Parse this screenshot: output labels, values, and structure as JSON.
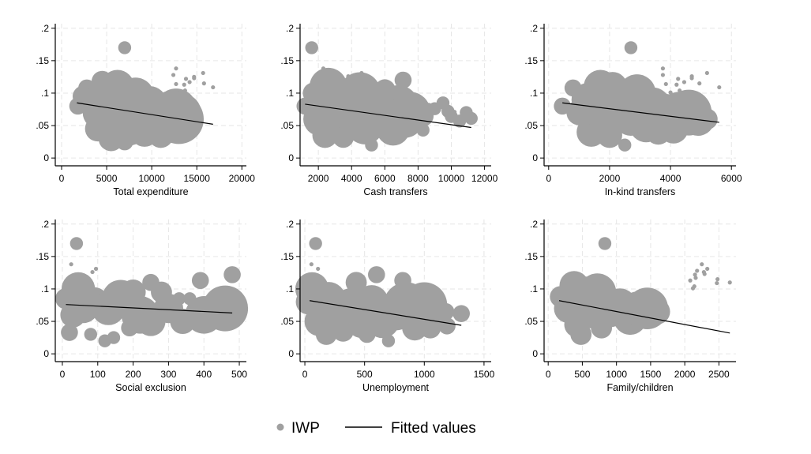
{
  "chart_data": {
    "type": "scatter",
    "figure_type": "multi-panel scatter with fitted lines",
    "legend": {
      "placement": "bottom-center",
      "entries": [
        {
          "label": "IWP",
          "marker": "circle",
          "color": "#a0a0a0"
        },
        {
          "label": "Fitted values",
          "marker": "line",
          "color": "#000000"
        }
      ]
    },
    "colors": {
      "points": "#a0a0a0",
      "fit": "#000000",
      "grid": "#e6e6e6",
      "axis": "#000000"
    },
    "y_axis": {
      "ticks": [
        0,
        0.05,
        0.1,
        0.15,
        0.2
      ],
      "tick_labels": [
        "0",
        ".05",
        ".1",
        ".15",
        ".2"
      ],
      "ylim": [
        -0.012,
        0.207
      ]
    },
    "panels": [
      {
        "xlabel": "Total expenditure",
        "xlim": [
          -700,
          20500
        ],
        "xticks": [
          0,
          5000,
          10000,
          15000,
          20000
        ],
        "xtick_labels": [
          "0",
          "5000",
          "10000",
          "15000",
          "20000"
        ],
        "fit": {
          "x": [
            1700,
            16800
          ],
          "y": [
            0.085,
            0.052
          ]
        },
        "points": [
          [
            1800,
            0.08,
            3
          ],
          [
            2400,
            0.095,
            4
          ],
          [
            2800,
            0.108,
            3
          ],
          [
            3500,
            0.085,
            6
          ],
          [
            4200,
            0.07,
            7
          ],
          [
            4500,
            0.118,
            4
          ],
          [
            4000,
            0.045,
            5
          ],
          [
            5200,
            0.06,
            8
          ],
          [
            5500,
            0.03,
            5
          ],
          [
            6200,
            0.11,
            7
          ],
          [
            6800,
            0.09,
            10
          ],
          [
            7200,
            0.065,
            9
          ],
          [
            7500,
            0.045,
            7
          ],
          [
            7000,
            0.025,
            3
          ],
          [
            7000,
            0.17,
            2
          ],
          [
            8200,
            0.095,
            8
          ],
          [
            8800,
            0.07,
            8
          ],
          [
            9200,
            0.04,
            6
          ],
          [
            9800,
            0.085,
            7
          ],
          [
            10500,
            0.06,
            9
          ],
          [
            11000,
            0.035,
            5
          ],
          [
            11800,
            0.08,
            6
          ],
          [
            12700,
            0.075,
            9
          ],
          [
            13000,
            0.06,
            11
          ],
          [
            13400,
            0.07,
            8
          ],
          [
            12400,
            0.128,
            1
          ],
          [
            12700,
            0.138,
            1
          ],
          [
            12700,
            0.114,
            1
          ],
          [
            13200,
            0.101,
            1
          ],
          [
            13600,
            0.113,
            1
          ],
          [
            13700,
            0.104,
            1
          ],
          [
            13800,
            0.122,
            1
          ],
          [
            14200,
            0.117,
            1
          ],
          [
            14700,
            0.125,
            1
          ],
          [
            14700,
            0.123,
            1
          ],
          [
            15700,
            0.131,
            1
          ],
          [
            15800,
            0.115,
            1
          ],
          [
            16800,
            0.109,
            1
          ]
        ]
      },
      {
        "xlabel": "Cash transfers",
        "xlim": [
          900,
          12400
        ],
        "xticks": [
          2000,
          4000,
          6000,
          8000,
          10000,
          12000
        ],
        "xtick_labels": [
          "2000",
          "4000",
          "6000",
          "8000",
          "10000",
          "12000"
        ],
        "fit": {
          "x": [
            1200,
            11200
          ],
          "y": [
            0.083,
            0.047
          ]
        },
        "points": [
          [
            1200,
            0.08,
            3
          ],
          [
            1600,
            0.17,
            2
          ],
          [
            1700,
            0.1,
            4
          ],
          [
            2100,
            0.06,
            7
          ],
          [
            2600,
            0.11,
            8
          ],
          [
            2400,
            0.035,
            5
          ],
          [
            3000,
            0.075,
            9
          ],
          [
            3400,
            0.05,
            7
          ],
          [
            3600,
            0.09,
            7
          ],
          [
            3500,
            0.032,
            4
          ],
          [
            4100,
            0.07,
            8
          ],
          [
            4500,
            0.1,
            9
          ],
          [
            4800,
            0.05,
            8
          ],
          [
            5200,
            0.02,
            2
          ],
          [
            5400,
            0.085,
            8
          ],
          [
            5800,
            0.065,
            8
          ],
          [
            6000,
            0.105,
            4
          ],
          [
            6500,
            0.045,
            7
          ],
          [
            6800,
            0.08,
            9
          ],
          [
            7100,
            0.12,
            3
          ],
          [
            7200,
            0.06,
            8
          ],
          [
            7500,
            0.07,
            9
          ],
          [
            8300,
            0.043,
            2
          ],
          [
            8300,
            0.065,
            4
          ],
          [
            8600,
            0.075,
            2
          ],
          [
            2300,
            0.138,
            1
          ],
          [
            3400,
            0.122,
            1
          ],
          [
            3800,
            0.126,
            1
          ],
          [
            4600,
            0.131,
            1
          ],
          [
            9000,
            0.076,
            2
          ],
          [
            9500,
            0.085,
            2
          ],
          [
            9800,
            0.072,
            2
          ],
          [
            10000,
            0.064,
            2
          ],
          [
            10200,
            0.071,
            1
          ],
          [
            10500,
            0.057,
            2
          ],
          [
            10900,
            0.07,
            2
          ],
          [
            11200,
            0.061,
            2
          ]
        ]
      },
      {
        "xlabel": "In-kind transfers",
        "xlim": [
          -150,
          6150
        ],
        "xticks": [
          0,
          2000,
          4000,
          6000
        ],
        "xtick_labels": [
          "0",
          "2000",
          "4000",
          "6000"
        ],
        "fit": {
          "x": [
            450,
            5600
          ],
          "y": [
            0.085,
            0.055
          ]
        },
        "points": [
          [
            450,
            0.08,
            3
          ],
          [
            800,
            0.108,
            3
          ],
          [
            1000,
            0.07,
            5
          ],
          [
            1300,
            0.09,
            7
          ],
          [
            1400,
            0.04,
            6
          ],
          [
            1700,
            0.11,
            7
          ],
          [
            1900,
            0.07,
            9
          ],
          [
            2100,
            0.11,
            6
          ],
          [
            2000,
            0.035,
            5
          ],
          [
            2400,
            0.08,
            8
          ],
          [
            2500,
            0.02,
            2
          ],
          [
            2700,
            0.17,
            2
          ],
          [
            2700,
            0.06,
            7
          ],
          [
            2900,
            0.1,
            8
          ],
          [
            3200,
            0.05,
            7
          ],
          [
            3400,
            0.08,
            8
          ],
          [
            3600,
            0.04,
            5
          ],
          [
            3800,
            0.07,
            8
          ],
          [
            4100,
            0.045,
            6
          ],
          [
            4300,
            0.07,
            9
          ],
          [
            4600,
            0.07,
            10
          ],
          [
            4900,
            0.06,
            7
          ],
          [
            5200,
            0.06,
            4
          ],
          [
            3750,
            0.138,
            1
          ],
          [
            3750,
            0.128,
            1
          ],
          [
            3850,
            0.114,
            1
          ],
          [
            4000,
            0.101,
            1
          ],
          [
            4200,
            0.113,
            1
          ],
          [
            4250,
            0.122,
            1
          ],
          [
            4300,
            0.104,
            1
          ],
          [
            4450,
            0.117,
            1
          ],
          [
            4700,
            0.123,
            1
          ],
          [
            4700,
            0.126,
            1
          ],
          [
            4950,
            0.115,
            1
          ],
          [
            5200,
            0.131,
            1
          ],
          [
            5600,
            0.109,
            1
          ]
        ]
      },
      {
        "xlabel": "Social exclusion",
        "xlim": [
          -20,
          520
        ],
        "xticks": [
          0,
          100,
          200,
          300,
          400,
          500
        ],
        "xtick_labels": [
          "0",
          "100",
          "200",
          "300",
          "400",
          "500"
        ],
        "fit": {
          "x": [
            10,
            480
          ],
          "y": [
            0.076,
            0.063
          ]
        },
        "points": [
          [
            10,
            0.085,
            4
          ],
          [
            20,
            0.033,
            3
          ],
          [
            30,
            0.06,
            5
          ],
          [
            45,
            0.1,
            7
          ],
          [
            40,
            0.17,
            2
          ],
          [
            60,
            0.07,
            6
          ],
          [
            80,
            0.03,
            2
          ],
          [
            90,
            0.08,
            6
          ],
          [
            120,
            0.02,
            2
          ],
          [
            130,
            0.07,
            7
          ],
          [
            145,
            0.025,
            2
          ],
          [
            165,
            0.085,
            8
          ],
          [
            190,
            0.04,
            3
          ],
          [
            200,
            0.095,
            5
          ],
          [
            220,
            0.06,
            8
          ],
          [
            250,
            0.05,
            6
          ],
          [
            250,
            0.11,
            3
          ],
          [
            280,
            0.095,
            4
          ],
          [
            300,
            0.07,
            6
          ],
          [
            330,
            0.085,
            2
          ],
          [
            340,
            0.05,
            5
          ],
          [
            360,
            0.085,
            2
          ],
          [
            390,
            0.113,
            3
          ],
          [
            400,
            0.06,
            8
          ],
          [
            460,
            0.07,
            10
          ],
          [
            480,
            0.122,
            3
          ],
          [
            25,
            0.138,
            1
          ],
          [
            85,
            0.126,
            1
          ],
          [
            95,
            0.131,
            1
          ]
        ]
      },
      {
        "xlabel": "Unemployment",
        "xlim": [
          -40,
          1560
        ],
        "xticks": [
          0,
          500,
          1000,
          1500
        ],
        "xtick_labels": [
          "0",
          "500",
          "1000",
          "1500"
        ],
        "fit": {
          "x": [
            40,
            1310
          ],
          "y": [
            0.082,
            0.044
          ]
        },
        "points": [
          [
            30,
            0.08,
            5
          ],
          [
            60,
            0.1,
            7
          ],
          [
            90,
            0.17,
            2
          ],
          [
            120,
            0.05,
            6
          ],
          [
            180,
            0.03,
            4
          ],
          [
            200,
            0.085,
            7
          ],
          [
            260,
            0.06,
            7
          ],
          [
            320,
            0.035,
            4
          ],
          [
            380,
            0.075,
            7
          ],
          [
            430,
            0.11,
            4
          ],
          [
            480,
            0.05,
            7
          ],
          [
            520,
            0.03,
            3
          ],
          [
            560,
            0.08,
            7
          ],
          [
            600,
            0.122,
            3
          ],
          [
            650,
            0.05,
            7
          ],
          [
            700,
            0.02,
            2
          ],
          [
            760,
            0.065,
            8
          ],
          [
            820,
            0.113,
            3
          ],
          [
            850,
            0.075,
            10
          ],
          [
            920,
            0.04,
            5
          ],
          [
            1000,
            0.075,
            10
          ],
          [
            1050,
            0.04,
            4
          ],
          [
            1180,
            0.065,
            3
          ],
          [
            1190,
            0.043,
            3
          ],
          [
            1310,
            0.062,
            3
          ],
          [
            55,
            0.138,
            1
          ],
          [
            110,
            0.131,
            1
          ]
        ]
      },
      {
        "xlabel": "Family/children",
        "xlim": [
          -60,
          2750
        ],
        "xticks": [
          0,
          500,
          1000,
          1500,
          2000,
          2500
        ],
        "xtick_labels": [
          "0",
          "500",
          "1000",
          "1500",
          "2000",
          "2500"
        ],
        "fit": {
          "x": [
            160,
            2660
          ],
          "y": [
            0.082,
            0.032
          ]
        },
        "points": [
          [
            180,
            0.088,
            4
          ],
          [
            300,
            0.07,
            6
          ],
          [
            380,
            0.105,
            6
          ],
          [
            420,
            0.045,
            5
          ],
          [
            480,
            0.03,
            4
          ],
          [
            520,
            0.1,
            5
          ],
          [
            600,
            0.065,
            7
          ],
          [
            720,
            0.095,
            8
          ],
          [
            780,
            0.04,
            4
          ],
          [
            830,
            0.17,
            2
          ],
          [
            900,
            0.07,
            8
          ],
          [
            1050,
            0.075,
            7
          ],
          [
            1200,
            0.055,
            7
          ],
          [
            1300,
            0.07,
            7
          ],
          [
            1450,
            0.07,
            9
          ],
          [
            1600,
            0.065,
            5
          ],
          [
            2080,
            0.113,
            1
          ],
          [
            2120,
            0.101,
            1
          ],
          [
            2140,
            0.104,
            1
          ],
          [
            2150,
            0.122,
            1
          ],
          [
            2160,
            0.117,
            1
          ],
          [
            2180,
            0.128,
            1
          ],
          [
            2250,
            0.138,
            1
          ],
          [
            2280,
            0.126,
            1
          ],
          [
            2290,
            0.123,
            1
          ],
          [
            2330,
            0.131,
            1
          ],
          [
            2470,
            0.109,
            1
          ],
          [
            2480,
            0.115,
            1
          ],
          [
            2660,
            0.11,
            1
          ]
        ]
      }
    ]
  }
}
